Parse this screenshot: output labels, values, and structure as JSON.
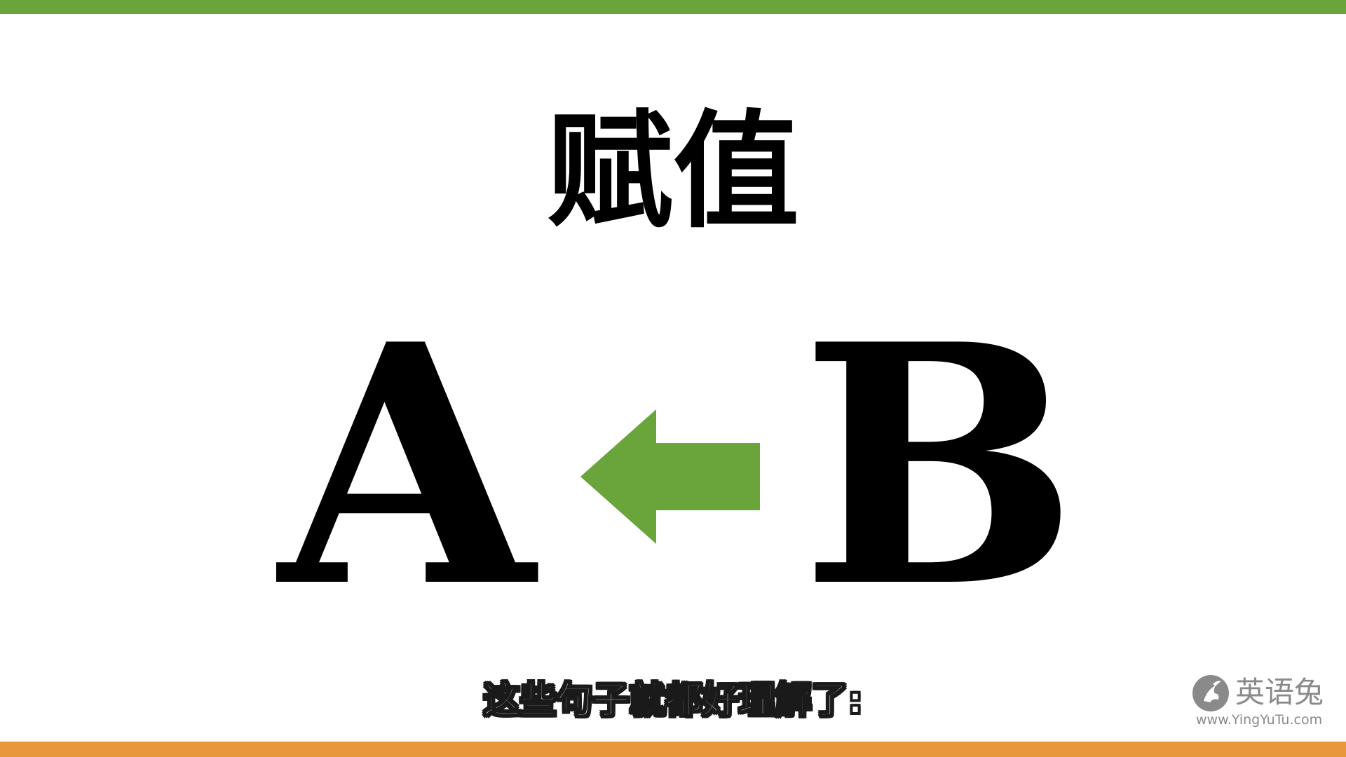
{
  "colors": {
    "top_bar": "#6aa53b",
    "bottom_bar": "#e8983a",
    "arrow": "#6aa53b",
    "logo": "#8a8a8a"
  },
  "slide": {
    "title": "赋值",
    "left_operand": "A",
    "right_operand": "B",
    "arrow_icon": "arrow-left-icon"
  },
  "subtitle": {
    "text": "这些句子就都好理解了:"
  },
  "logo": {
    "icon": "rabbit-icon",
    "name": "英语兔",
    "url": "www.YingYuTu.com"
  }
}
